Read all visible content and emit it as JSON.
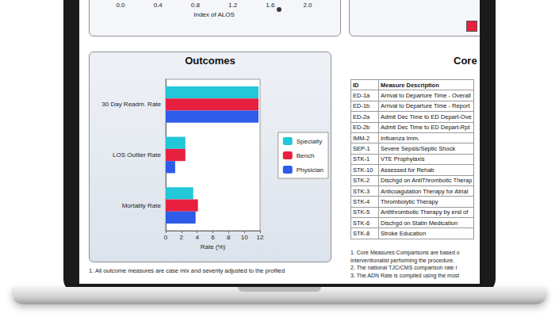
{
  "chart_data": {
    "type": "bar",
    "orientation": "horizontal",
    "title": "Outcomes",
    "categories": [
      "30 Day Readm. Rate",
      "LOS Outlier Rate",
      "Mortality Rate"
    ],
    "series": [
      {
        "name": "Specialty",
        "color": "#22c7d8",
        "values": [
          11.8,
          2.5,
          3.5
        ]
      },
      {
        "name": "Bench",
        "color": "#e8203f",
        "values": [
          11.8,
          2.5,
          4.1
        ]
      },
      {
        "name": "Physician",
        "color": "#2e5ce8",
        "values": [
          11.8,
          1.2,
          3.8
        ]
      }
    ],
    "x_label": "Rate (%)",
    "xlim": [
      0,
      12
    ],
    "xticks": [
      0,
      2,
      4,
      6,
      8,
      10,
      12
    ],
    "legend": "right",
    "grid": false
  },
  "alos_panel": {
    "ticks": [
      "0.0",
      "0.4",
      "0.8",
      "1.2",
      "1.6",
      "2.0"
    ],
    "axis_title": "Index of ALOS"
  },
  "outcomes_note": "1. All outcome measures are case mix and severity adjusted to the profiled",
  "core_panel": {
    "title": "Core",
    "table": {
      "header": [
        "ID",
        "Measure Description"
      ],
      "rows": [
        [
          "ED-1a",
          "Arrival to Departure Time - Overall"
        ],
        [
          "ED-1b",
          "Arrival to Departure Time - Report"
        ],
        [
          "ED-2a",
          "Admit Dec Time to ED Depart-Ove"
        ],
        [
          "ED-2b",
          "Admit Dec Time to ED Depart-Rpt"
        ],
        [
          "IMM-2",
          "Influenza Imm."
        ],
        [
          "SEP-1",
          "Severe Sepsis/Septic Shock"
        ],
        [
          "STK-1",
          "VTE Prophylaxis"
        ],
        [
          "STK-10",
          "Assessed for Rehab"
        ],
        [
          "STK-2",
          "Dischgd on AntiThrombotic Therap"
        ],
        [
          "STK-3",
          "Anticoagulation Therapy for Atrial"
        ],
        [
          "STK-4",
          "Thrombolytic Therapy"
        ],
        [
          "STK-5",
          "Antithrombotic Therapy by end of"
        ],
        [
          "STK-6",
          "Dischgd on Statin Medication"
        ],
        [
          "STK-8",
          "Stroke Education"
        ]
      ]
    },
    "notes": [
      "1. Core Measures Comparisons are based o",
      "interventionalist performing the procedure.",
      "2. The national TJC/CMS comparison rate r",
      "3. The ADN Rate is compiled using the most"
    ]
  }
}
